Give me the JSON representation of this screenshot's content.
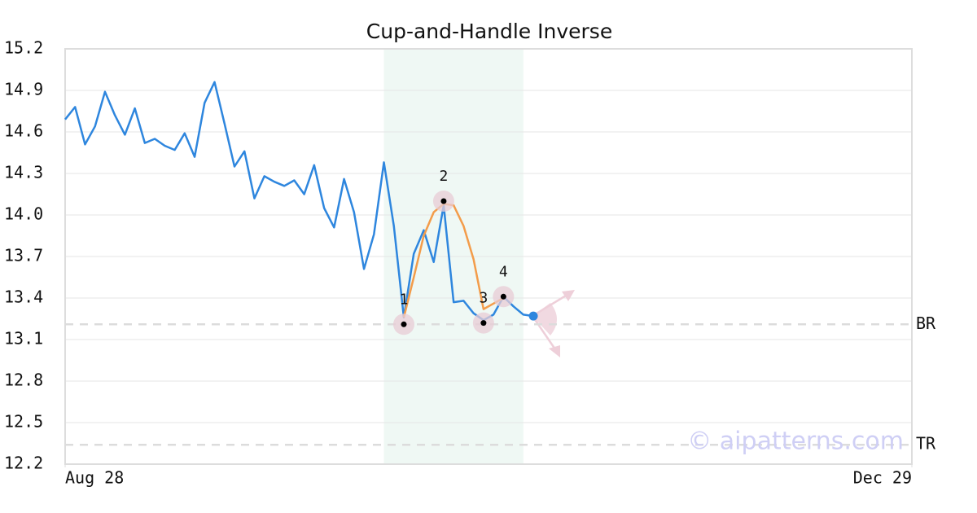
{
  "chart_data": {
    "type": "line",
    "title": "Cup-and-Handle Inverse",
    "xlim": [
      0,
      85
    ],
    "xticks": [
      {
        "value": 0,
        "label": "Aug 28"
      },
      {
        "value": 85,
        "label": "Dec 29"
      }
    ],
    "ylim": [
      12.2,
      15.2
    ],
    "yticks": [
      15.2,
      14.9,
      14.6,
      14.3,
      {
        "value": 14,
        "label": "14.0"
      },
      13.7,
      13.4,
      13.1,
      12.8,
      12.5,
      12.2
    ],
    "grid": true,
    "highlight_range": [
      32,
      46
    ],
    "series": [
      {
        "color": "#2e86de",
        "x": [
          0,
          1,
          2,
          3,
          4,
          5,
          6,
          7,
          8,
          9,
          10,
          11,
          12,
          13,
          14,
          15,
          16,
          17,
          18,
          19,
          20,
          21,
          22,
          23,
          24,
          25,
          26,
          27,
          28,
          29,
          30,
          31,
          32,
          33,
          34,
          35,
          36,
          37,
          38,
          39,
          40,
          41,
          42,
          43,
          44,
          45,
          46,
          47
        ],
        "values": [
          14.69,
          14.78,
          14.51,
          14.64,
          14.89,
          14.72,
          14.58,
          14.77,
          14.52,
          14.55,
          14.5,
          14.47,
          14.59,
          14.42,
          14.81,
          14.96,
          14.66,
          14.35,
          14.46,
          14.12,
          14.28,
          14.24,
          14.21,
          14.25,
          14.15,
          14.36,
          14.05,
          13.91,
          14.26,
          14.02,
          13.61,
          13.86,
          14.38,
          13.92,
          13.26,
          13.72,
          13.89,
          13.66,
          14.07,
          13.37,
          13.38,
          13.29,
          13.24,
          13.28,
          13.41,
          13.34,
          13.28,
          13.27
        ]
      },
      {
        "color": "#f39c4a",
        "x": [
          34,
          35,
          36,
          37,
          38,
          39,
          40,
          41,
          42,
          43,
          44
        ],
        "values": [
          13.26,
          13.55,
          13.85,
          14.02,
          14.08,
          14.07,
          13.92,
          13.68,
          13.32,
          13.36,
          13.4
        ]
      }
    ],
    "pattern_points": [
      {
        "label": "1",
        "x": 34,
        "y": 13.21
      },
      {
        "label": "2",
        "x": 38,
        "y": 14.1
      },
      {
        "label": "3",
        "x": 42,
        "y": 13.22
      },
      {
        "label": "4",
        "x": 44,
        "y": 13.41
      }
    ],
    "levels": [
      {
        "label": "BR",
        "value": 13.21
      },
      {
        "label": "TR",
        "value": 12.34
      }
    ],
    "watermark": "© aipatterns.com"
  }
}
